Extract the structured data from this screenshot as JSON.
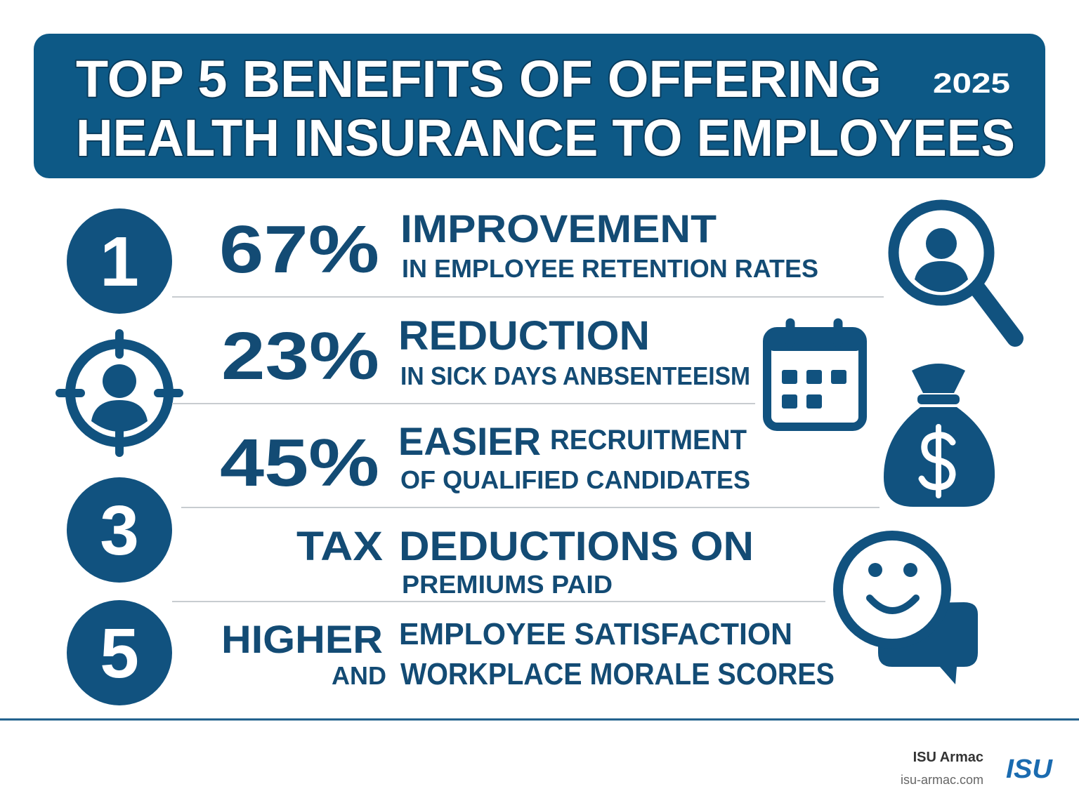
{
  "header": {
    "title_lines": [
      "TOP 5 BENEFITS OF OFFERING",
      "HEALTH INSURANCE TO EMPLOYEES"
    ],
    "year": "2025"
  },
  "badges": [
    "1",
    "3",
    "5"
  ],
  "benefits": [
    {
      "stat": "67%",
      "headline": "IMPROVEMENT",
      "detail": "IN EMPLOYEE RETENTION RATES"
    },
    {
      "stat": "23%",
      "headline": "REDUCTION",
      "detail": "IN SICK DAYS ANBSENTEEISM"
    },
    {
      "stat": "45%",
      "headline": "EASIER",
      "headline_extra": "RECRUITMENT",
      "detail": "OF QUALIFIED CANDIDATES"
    },
    {
      "stat": "TAX",
      "headline": "DEDUCTIONS ON",
      "detail": "PREMIUMS PAID"
    },
    {
      "stat": "HIGHER",
      "stat_extra": "AND",
      "headline": "EMPLOYEE SATISFACTION",
      "detail": "WORKPLACE MORALE SCORES"
    }
  ],
  "footer": {
    "company": "ISU Armac",
    "website": "isu-armac.com",
    "logo": "ISU"
  }
}
